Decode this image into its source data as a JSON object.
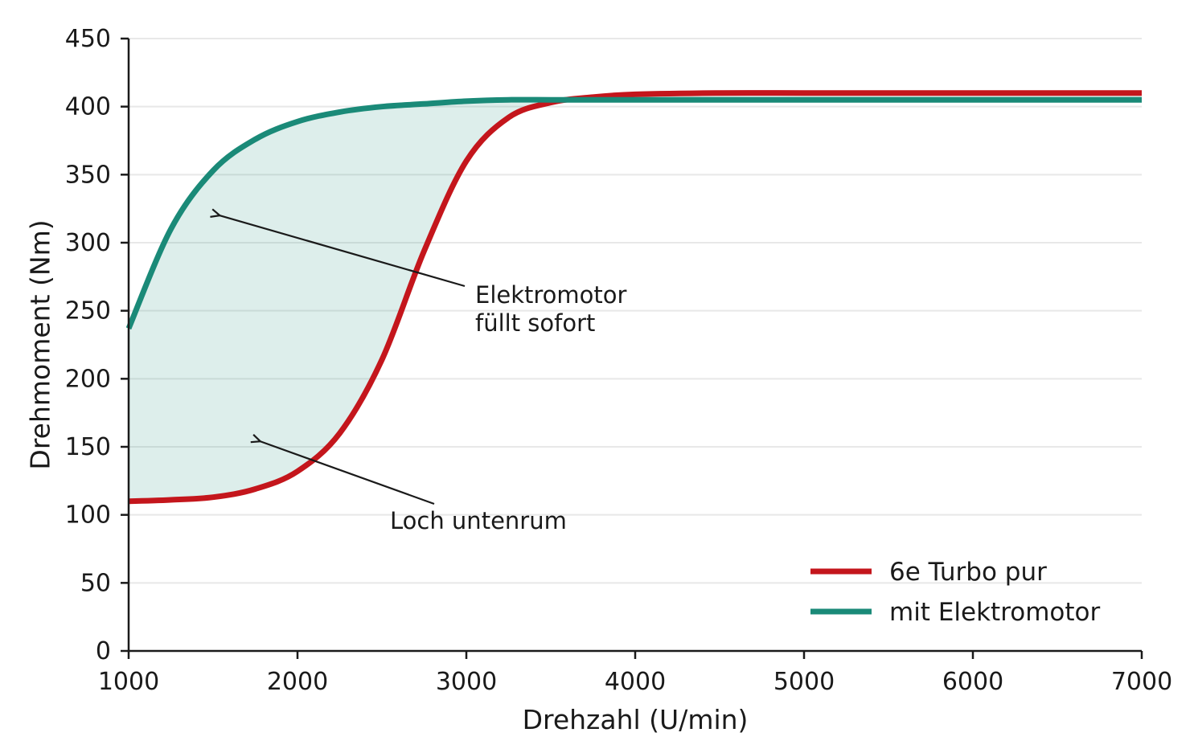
{
  "chart_data": {
    "type": "line",
    "xlabel": "Drehzahl (U/min)",
    "ylabel": "Drehmoment (Nm)",
    "xlim": [
      1000,
      7000
    ],
    "ylim": [
      0,
      450
    ],
    "xticks": [
      "1000",
      "2000",
      "3000",
      "4000",
      "5000",
      "6000",
      "7000"
    ],
    "yticks": [
      "0",
      "50",
      "100",
      "150",
      "200",
      "250",
      "300",
      "350",
      "400",
      "450"
    ],
    "grid": "horizontal",
    "legend_position": "bottom-right",
    "x": [
      1000,
      1250,
      1500,
      1750,
      2000,
      2250,
      2500,
      2750,
      3000,
      3250,
      3500,
      3750,
      4000,
      4500,
      5000,
      5500,
      6000,
      6500,
      7000
    ],
    "series": [
      {
        "name": "6e Turbo pur",
        "color": "#c4161c",
        "values": [
          110,
          111,
          113,
          119,
          132,
          160,
          214,
          294,
          360,
          392,
          403,
          407,
          409,
          410,
          410,
          410,
          410,
          410,
          410
        ]
      },
      {
        "name": "mit Elektromotor",
        "color": "#1a8a78",
        "values": [
          237,
          310,
          353,
          376,
          389,
          396,
          400,
          402,
          404,
          405,
          405,
          405,
          405,
          405,
          405,
          405,
          405,
          405,
          405
        ]
      }
    ],
    "fill_between": {
      "color": "#1a8a78",
      "opacity": 0.15
    },
    "annotations": [
      {
        "text_lines": [
          "Elektromotor",
          "füllt sofort"
        ],
        "target": [
          1540,
          320
        ]
      },
      {
        "text_lines": [
          "Loch untenrum"
        ],
        "target": [
          1780,
          154
        ]
      }
    ]
  }
}
